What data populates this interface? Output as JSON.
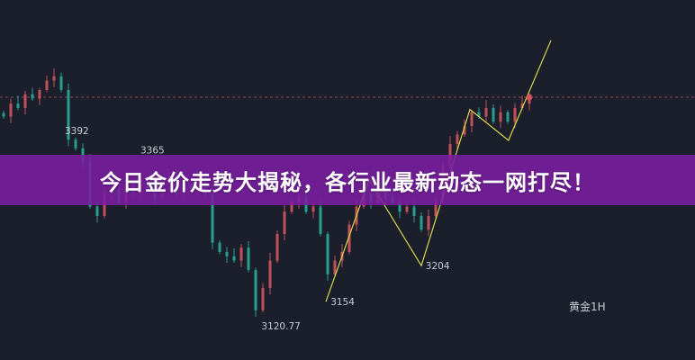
{
  "banner": {
    "title": "今日金价走势大揭秘，各行业最新动态一网打尽！"
  },
  "symbol_label": "黄金1H",
  "colors": {
    "background": "#1b1f2b",
    "up": "#c2525a",
    "down": "#2a9d8f",
    "zigzag": "#d8d84a",
    "banner": "#7a1fa0",
    "reference_line": "#8a4a5a",
    "marker": "#e05560"
  },
  "chart_data": {
    "type": "candlestick",
    "title": "",
    "xlabel": "",
    "ylabel": "",
    "ylim": [
      3073,
      3573
    ],
    "grid": false,
    "closes": [
      3411,
      3429,
      3423,
      3442,
      3436,
      3448,
      3461,
      3467,
      3448,
      3379,
      3367,
      3348,
      3286,
      3273,
      3304,
      3311,
      3292,
      3317,
      3304,
      3323,
      3311,
      3298,
      3317,
      3329,
      3304,
      3317,
      3311,
      3323,
      3304,
      3236,
      3223,
      3217,
      3211,
      3229,
      3198,
      3142,
      3173,
      3211,
      3248,
      3279,
      3292,
      3298,
      3279,
      3286,
      3248,
      3192,
      3211,
      3223,
      3261,
      3286,
      3304,
      3292,
      3317,
      3298,
      3292,
      3279,
      3286,
      3273,
      3254,
      3273,
      3298,
      3342,
      3373,
      3386,
      3398,
      3417,
      3411,
      3423,
      3404,
      3417,
      3404,
      3423,
      3429,
      3438
    ],
    "reference_price": 3438,
    "zigzag": [
      [
        44.75,
        3154
      ],
      [
        50.75,
        3323
      ],
      [
        58,
        3204
      ],
      [
        64.75,
        3421
      ],
      [
        70.1,
        3378
      ],
      [
        76,
        3517
      ]
    ],
    "annotations": [
      {
        "index": 8.5,
        "price": 3392,
        "text": "3392"
      },
      {
        "index": 19,
        "price": 3365,
        "text": "3365"
      },
      {
        "index": 35.8,
        "price": 3120.77,
        "text": "3120.77"
      },
      {
        "index": 45.4,
        "price": 3154,
        "text": "3154"
      },
      {
        "index": 58.6,
        "price": 3204,
        "text": "3204"
      }
    ]
  }
}
